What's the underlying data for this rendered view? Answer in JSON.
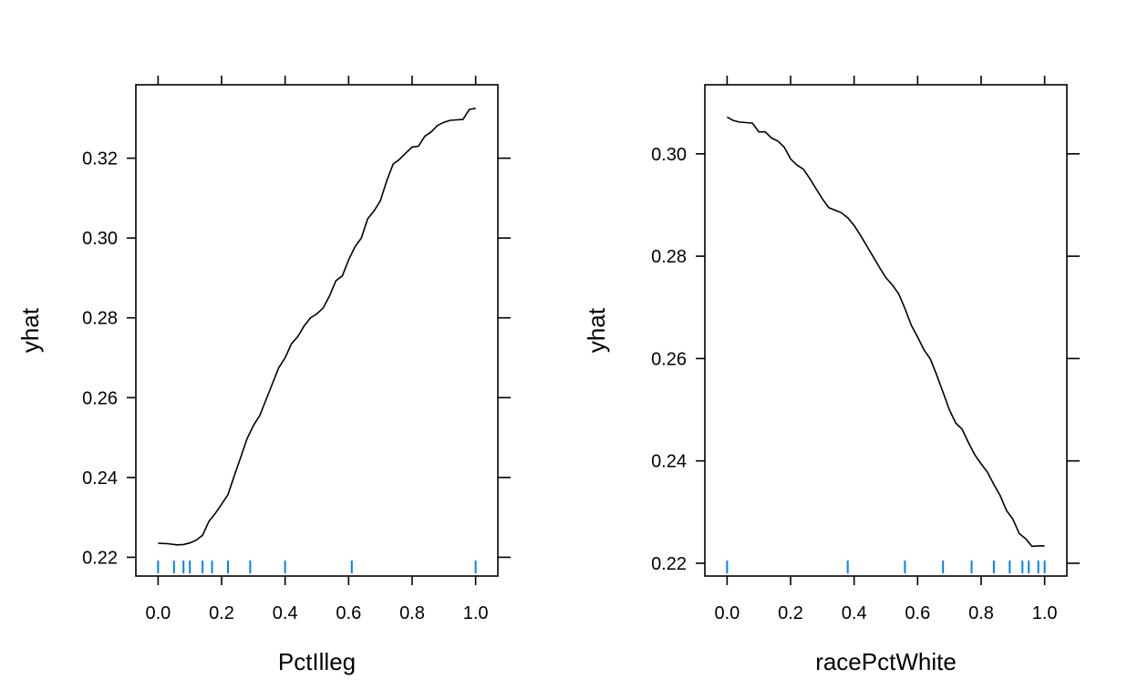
{
  "chart_data": [
    {
      "type": "line",
      "xlabel": "PctIlleg",
      "ylabel": "yhat",
      "xticks": [
        "0.0",
        "0.2",
        "0.4",
        "0.6",
        "0.8",
        "1.0"
      ],
      "yticks": [
        "0.22",
        "0.24",
        "0.26",
        "0.28",
        "0.30",
        "0.32"
      ],
      "xlim": [
        -0.07,
        1.07
      ],
      "ylim": [
        0.2153,
        0.3384
      ],
      "grid": false,
      "rug_color": "#0080ff",
      "rug": [
        0.0,
        0.05,
        0.08,
        0.1,
        0.14,
        0.17,
        0.22,
        0.29,
        0.4,
        0.61,
        1.0
      ],
      "x": [
        0.0,
        0.03,
        0.06,
        0.08,
        0.1,
        0.12,
        0.14,
        0.16,
        0.18,
        0.2,
        0.22,
        0.24,
        0.26,
        0.28,
        0.3,
        0.32,
        0.34,
        0.36,
        0.38,
        0.4,
        0.42,
        0.44,
        0.46,
        0.48,
        0.5,
        0.52,
        0.54,
        0.56,
        0.58,
        0.6,
        0.62,
        0.64,
        0.66,
        0.68,
        0.7,
        0.72,
        0.74,
        0.76,
        0.78,
        0.8,
        0.82,
        0.84,
        0.86,
        0.88,
        0.9,
        0.92,
        0.94,
        0.96,
        0.98,
        1.0
      ],
      "y": [
        0.2235,
        0.2234,
        0.2231,
        0.2232,
        0.2236,
        0.2243,
        0.2255,
        0.229,
        0.231,
        0.2333,
        0.2357,
        0.2405,
        0.245,
        0.2497,
        0.253,
        0.2555,
        0.2595,
        0.2635,
        0.2675,
        0.27,
        0.2735,
        0.2753,
        0.278,
        0.28,
        0.281,
        0.2825,
        0.2855,
        0.2893,
        0.2905,
        0.2945,
        0.2978,
        0.3,
        0.3048,
        0.3068,
        0.3093,
        0.3143,
        0.3185,
        0.3197,
        0.3213,
        0.3228,
        0.323,
        0.3255,
        0.3266,
        0.3282,
        0.329,
        0.3295,
        0.3296,
        0.3297,
        0.3322,
        0.3325
      ]
    },
    {
      "type": "line",
      "xlabel": "racePctWhite",
      "ylabel": "yhat",
      "xticks": [
        "0.0",
        "0.2",
        "0.4",
        "0.6",
        "0.8",
        "1.0"
      ],
      "yticks": [
        "0.22",
        "0.24",
        "0.26",
        "0.28",
        "0.30"
      ],
      "xlim": [
        -0.07,
        1.07
      ],
      "ylim": [
        0.2175,
        0.3135
      ],
      "grid": false,
      "rug_color": "#0080ff",
      "rug": [
        0.0,
        0.38,
        0.56,
        0.68,
        0.77,
        0.84,
        0.89,
        0.93,
        0.95,
        0.98,
        1.0
      ],
      "x": [
        0.0,
        0.02,
        0.04,
        0.06,
        0.08,
        0.1,
        0.12,
        0.14,
        0.16,
        0.18,
        0.2,
        0.22,
        0.24,
        0.26,
        0.28,
        0.3,
        0.32,
        0.34,
        0.36,
        0.38,
        0.4,
        0.42,
        0.44,
        0.46,
        0.48,
        0.5,
        0.52,
        0.54,
        0.56,
        0.58,
        0.6,
        0.62,
        0.64,
        0.66,
        0.68,
        0.7,
        0.72,
        0.74,
        0.76,
        0.78,
        0.8,
        0.82,
        0.84,
        0.86,
        0.88,
        0.9,
        0.92,
        0.94,
        0.96,
        0.98,
        1.0
      ],
      "y": [
        0.3072,
        0.3065,
        0.3062,
        0.3061,
        0.306,
        0.3043,
        0.3043,
        0.3031,
        0.3025,
        0.3013,
        0.299,
        0.2978,
        0.297,
        0.2952,
        0.2932,
        0.2912,
        0.2895,
        0.289,
        0.2885,
        0.2875,
        0.286,
        0.2841,
        0.282,
        0.2799,
        0.2778,
        0.2758,
        0.2744,
        0.2727,
        0.2698,
        0.2665,
        0.2642,
        0.2617,
        0.2599,
        0.2568,
        0.2534,
        0.25,
        0.2474,
        0.2462,
        0.2436,
        0.2412,
        0.2394,
        0.2378,
        0.2354,
        0.2332,
        0.2303,
        0.2286,
        0.2258,
        0.2248,
        0.2233,
        0.2234,
        0.2234
      ]
    }
  ]
}
